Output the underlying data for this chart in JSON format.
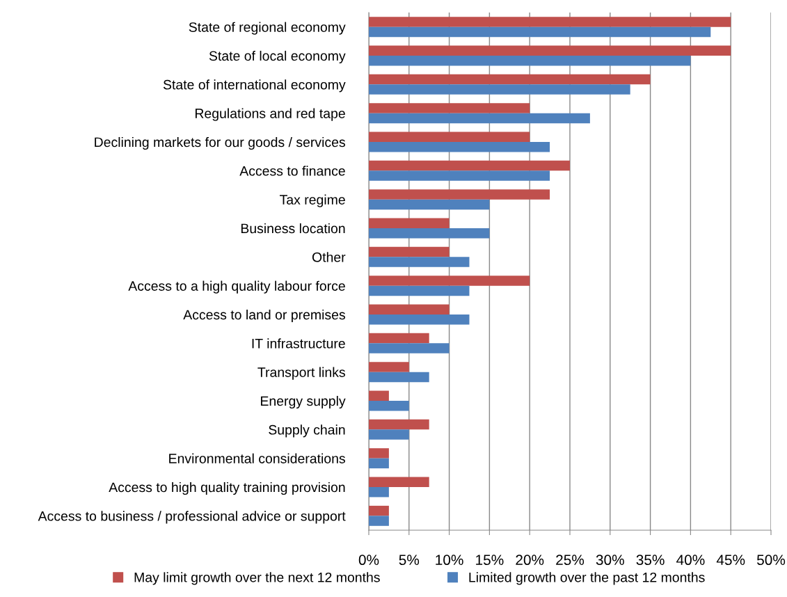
{
  "chart_data": {
    "type": "bar",
    "orientation": "horizontal",
    "categories": [
      "State of regional economy",
      "State of local economy",
      "State of international economy",
      "Regulations and red tape",
      "Declining markets for our goods / services",
      "Access to finance",
      "Tax regime",
      "Business location",
      "Other",
      "Access to a high quality labour force",
      "Access to land or premises",
      "IT infrastructure",
      "Transport links",
      "Energy supply",
      "Supply chain",
      "Environmental considerations",
      "Access to high quality training provision",
      "Access to business / professional advice or support"
    ],
    "series": [
      {
        "name": "May limit growth over the next 12 months",
        "color": "#c0504d",
        "values": [
          45,
          45,
          35,
          20,
          20,
          25,
          22.5,
          10,
          10,
          20,
          10,
          7.5,
          5,
          2.5,
          7.5,
          2.5,
          7.5,
          2.5
        ]
      },
      {
        "name": "Limited growth over the past 12 months",
        "color": "#4f81bd",
        "values": [
          42.5,
          40,
          32.5,
          27.5,
          22.5,
          22.5,
          15,
          15,
          12.5,
          12.5,
          12.5,
          10,
          7.5,
          5,
          5,
          2.5,
          2.5,
          2.5
        ]
      }
    ],
    "xlim": [
      0,
      50
    ],
    "xticks": [
      {
        "value": 0,
        "label": "0%"
      },
      {
        "value": 5,
        "label": "5%"
      },
      {
        "value": 10,
        "label": "10%"
      },
      {
        "value": 15,
        "label": "15%"
      },
      {
        "value": 20,
        "label": "20%"
      },
      {
        "value": 25,
        "label": "25%"
      },
      {
        "value": 30,
        "label": "30%"
      },
      {
        "value": 35,
        "label": "35%"
      },
      {
        "value": 40,
        "label": "40%"
      },
      {
        "value": 45,
        "label": "45%"
      },
      {
        "value": 50,
        "label": "50%"
      }
    ],
    "grid": "x",
    "legend": "bottom"
  }
}
